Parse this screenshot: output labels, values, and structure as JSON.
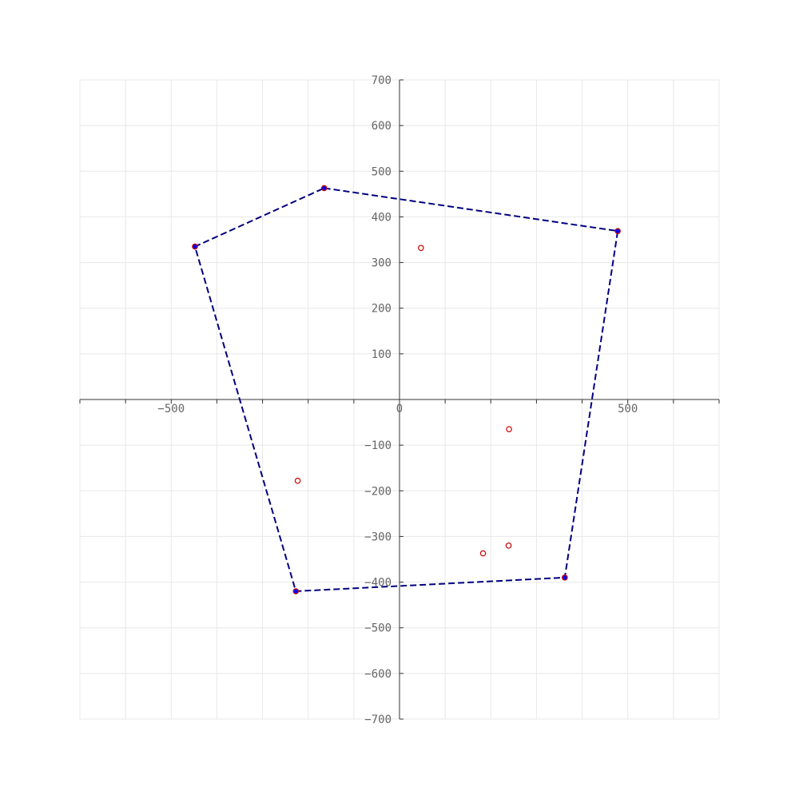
{
  "chart_data": {
    "type": "scatter",
    "title": "",
    "xlabel": "",
    "ylabel": "",
    "xlim": [
      -700,
      700
    ],
    "ylim": [
      -700,
      700
    ],
    "grid": true,
    "grid_step": 100,
    "x_tick_labels": [
      {
        "value": -500,
        "label": "−500"
      },
      {
        "value": 0,
        "label": "0"
      },
      {
        "value": 500,
        "label": "500"
      }
    ],
    "y_tick_labels": [
      {
        "value": 700,
        "label": "700"
      },
      {
        "value": 600,
        "label": "600"
      },
      {
        "value": 500,
        "label": "500"
      },
      {
        "value": 400,
        "label": "400"
      },
      {
        "value": 300,
        "label": "300"
      },
      {
        "value": 200,
        "label": "200"
      },
      {
        "value": 100,
        "label": "100"
      },
      {
        "value": -100,
        "label": "−100"
      },
      {
        "value": -200,
        "label": "−200"
      },
      {
        "value": -300,
        "label": "−300"
      },
      {
        "value": -400,
        "label": "−400"
      },
      {
        "value": -500,
        "label": "−500"
      },
      {
        "value": -600,
        "label": "−600"
      },
      {
        "value": -700,
        "label": "−700"
      }
    ],
    "series": [
      {
        "kind": "points",
        "marker": "open-circle",
        "color": "#cc0000",
        "points": [
          [
            -165,
            463
          ],
          [
            478,
            369
          ],
          [
            -448,
            335
          ],
          [
            47,
            332
          ],
          [
            240,
            -65
          ],
          [
            -223,
            -178
          ],
          [
            239,
            -320
          ],
          [
            183,
            -337
          ],
          [
            362,
            -390
          ],
          [
            -227,
            -420
          ]
        ]
      },
      {
        "kind": "hull",
        "marker": "filled-dot",
        "line_style": "dashed",
        "color": "#000080",
        "vertex_color": "#0000ff",
        "points": [
          [
            -165,
            463
          ],
          [
            478,
            369
          ],
          [
            362,
            -390
          ],
          [
            -227,
            -420
          ],
          [
            -448,
            335
          ]
        ]
      }
    ]
  }
}
